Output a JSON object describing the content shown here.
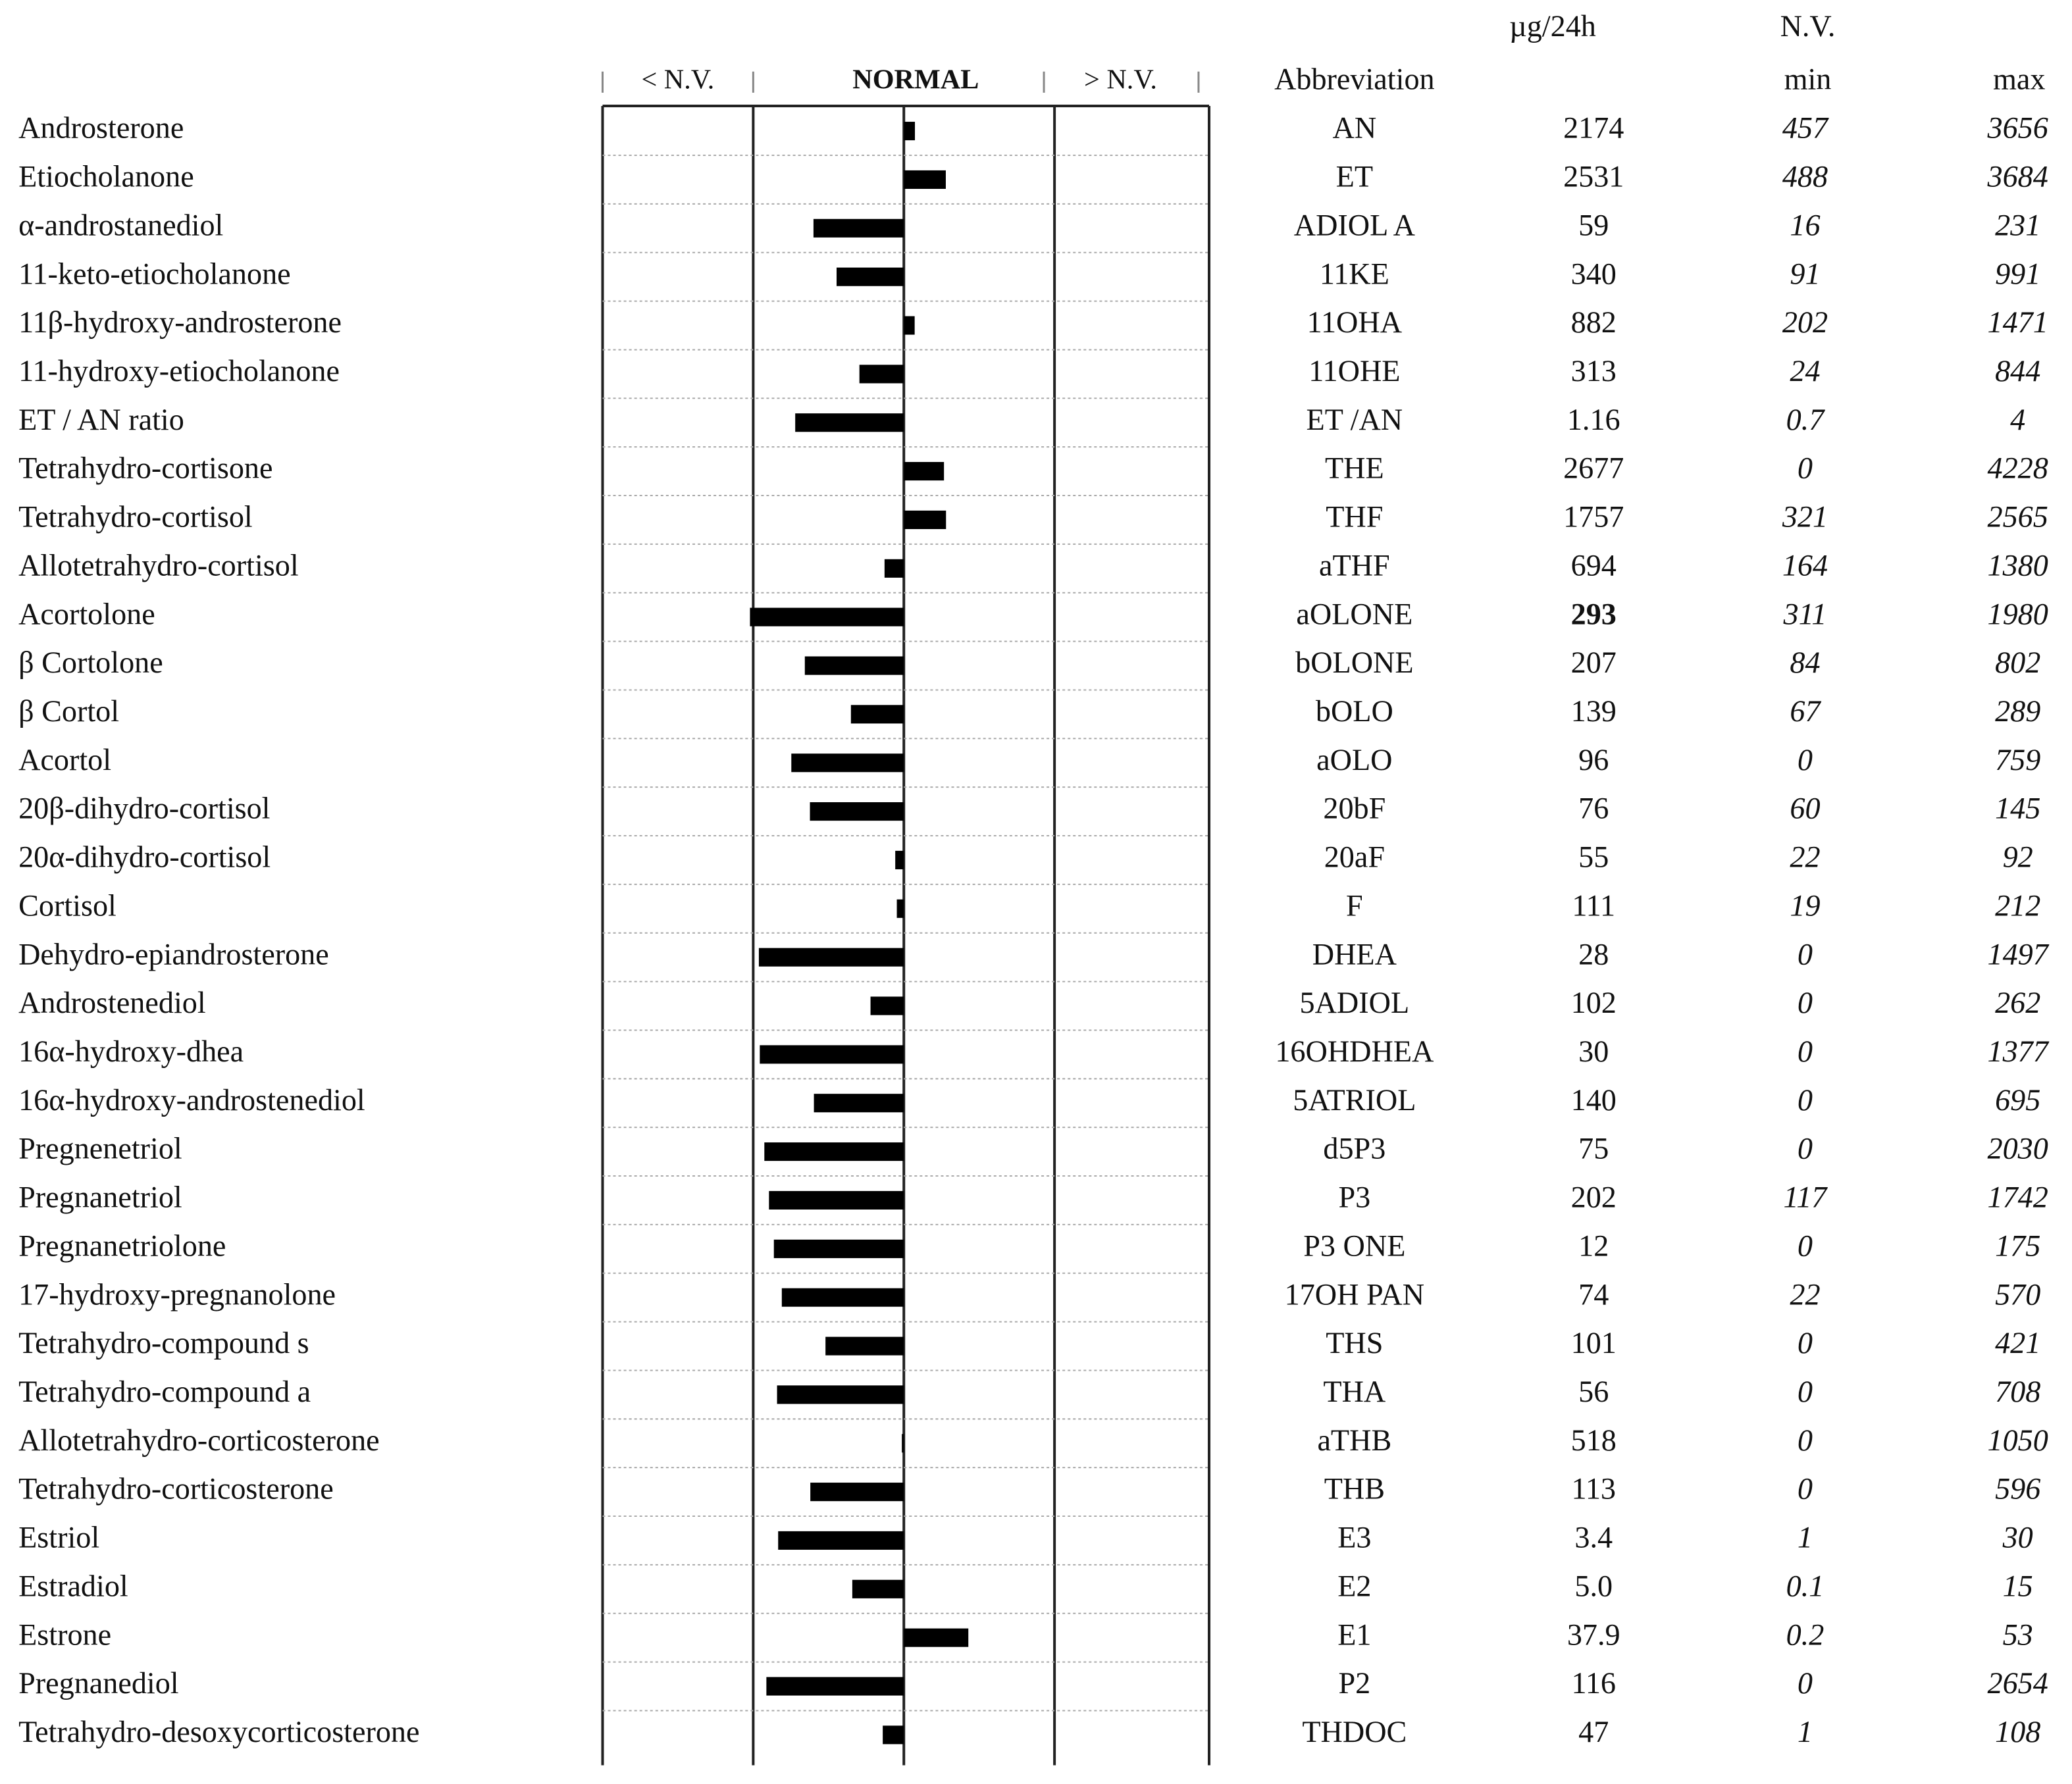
{
  "header": {
    "unit": "µg/24h",
    "nv": "N.V.",
    "below": "< N.V.",
    "normal": "NORMAL",
    "above": "> N.V.",
    "abbreviation": "Abbreviation",
    "min": "min",
    "max": "max"
  },
  "rows": [
    {
      "name": "Androsterone",
      "abbreviation": "AN",
      "value": 2174,
      "min": 457,
      "max": 3656
    },
    {
      "name": "Etiocholanone",
      "abbreviation": "ET",
      "value": 2531,
      "min": 488,
      "max": 3684
    },
    {
      "name": "α-androstanediol",
      "abbreviation": "ADIOL A",
      "value": 59,
      "min": 16,
      "max": 231
    },
    {
      "name": "11-keto-etiocholanone",
      "abbreviation": "11KE",
      "value": 340,
      "min": 91,
      "max": 991
    },
    {
      "name": "11β-hydroxy-androsterone",
      "abbreviation": "11OHA",
      "value": 882,
      "min": 202,
      "max": 1471
    },
    {
      "name": "11-hydroxy-etiocholanone",
      "abbreviation": "11OHE",
      "value": 313,
      "min": 24,
      "max": 844
    },
    {
      "name": "ET / AN ratio",
      "abbreviation": "ET /AN",
      "value": 1.16,
      "min": 0.7,
      "max": 4
    },
    {
      "name": "Tetrahydro-cortisone",
      "abbreviation": "THE",
      "value": 2677,
      "min": 0,
      "max": 4228
    },
    {
      "name": "Tetrahydro-cortisol",
      "abbreviation": "THF",
      "value": 1757,
      "min": 321,
      "max": 2565
    },
    {
      "name": "Allotetrahydro-cortisol",
      "abbreviation": "aTHF",
      "value": 694,
      "min": 164,
      "max": 1380
    },
    {
      "name": "Acortolone",
      "abbreviation": "aOLONE",
      "value": 293,
      "min": 311,
      "max": 1980
    },
    {
      "name": "β Cortolone",
      "abbreviation": "bOLONE",
      "value": 207,
      "min": 84,
      "max": 802
    },
    {
      "name": "β Cortol",
      "abbreviation": "bOLO",
      "value": 139,
      "min": 67,
      "max": 289
    },
    {
      "name": "Acortol",
      "abbreviation": "aOLO",
      "value": 96,
      "min": 0,
      "max": 759
    },
    {
      "name": "20β-dihydro-cortisol",
      "abbreviation": "20bF",
      "value": 76,
      "min": 60,
      "max": 145
    },
    {
      "name": "20α-dihydro-cortisol",
      "abbreviation": "20aF",
      "value": 55,
      "min": 22,
      "max": 92
    },
    {
      "name": "Cortisol",
      "abbreviation": "F",
      "value": 111,
      "min": 19,
      "max": 212
    },
    {
      "name": "Dehydro-epiandrosterone",
      "abbreviation": "DHEA",
      "value": 28,
      "min": 0,
      "max": 1497
    },
    {
      "name": "Androstenediol",
      "abbreviation": "5ADIOL",
      "value": 102,
      "min": 0,
      "max": 262
    },
    {
      "name": "16α-hydroxy-dhea",
      "abbreviation": "16OHDHEA",
      "value": 30,
      "min": 0,
      "max": 1377
    },
    {
      "name": "16α-hydroxy-androstenediol",
      "abbreviation": "5ATRIOL",
      "value": 140,
      "min": 0,
      "max": 695
    },
    {
      "name": "Pregnenetriol",
      "abbreviation": "d5P3",
      "value": 75,
      "min": 0,
      "max": 2030
    },
    {
      "name": "Pregnanetriol",
      "abbreviation": "P3",
      "value": 202,
      "min": 117,
      "max": 1742
    },
    {
      "name": "Pregnanetriolone",
      "abbreviation": "P3 ONE",
      "value": 12,
      "min": 0,
      "max": 175
    },
    {
      "name": "17-hydroxy-pregnanolone",
      "abbreviation": "17OH PAN",
      "value": 74,
      "min": 22,
      "max": 570
    },
    {
      "name": "Tetrahydro-compound s",
      "abbreviation": "THS",
      "value": 101,
      "min": 0,
      "max": 421
    },
    {
      "name": "Tetrahydro-compound a",
      "abbreviation": "THA",
      "value": 56,
      "min": 0,
      "max": 708
    },
    {
      "name": "Allotetrahydro-corticosterone",
      "abbreviation": "aTHB",
      "value": 518,
      "min": 0,
      "max": 1050
    },
    {
      "name": "Tetrahydro-corticosterone",
      "abbreviation": "THB",
      "value": 113,
      "min": 0,
      "max": 596
    },
    {
      "name": "Estriol",
      "abbreviation": "E3",
      "value": 3.4,
      "min": 1,
      "max": 30
    },
    {
      "name": "Estradiol",
      "abbreviation": "E2",
      "value": {
        "value": 5,
        "label": "5.0"
      },
      "min": 0.1,
      "max": 15
    },
    {
      "name": "Estrone",
      "abbreviation": "E1",
      "value": 37.9,
      "min": 0.2,
      "max": 53
    },
    {
      "name": "Pregnanediol",
      "abbreviation": "P2",
      "value": 116,
      "min": 0,
      "max": 2654
    },
    {
      "name": "Tetrahydro-desoxycorticosterone",
      "abbreviation": "THDOC",
      "value": 47,
      "min": 1,
      "max": 108
    }
  ]
}
